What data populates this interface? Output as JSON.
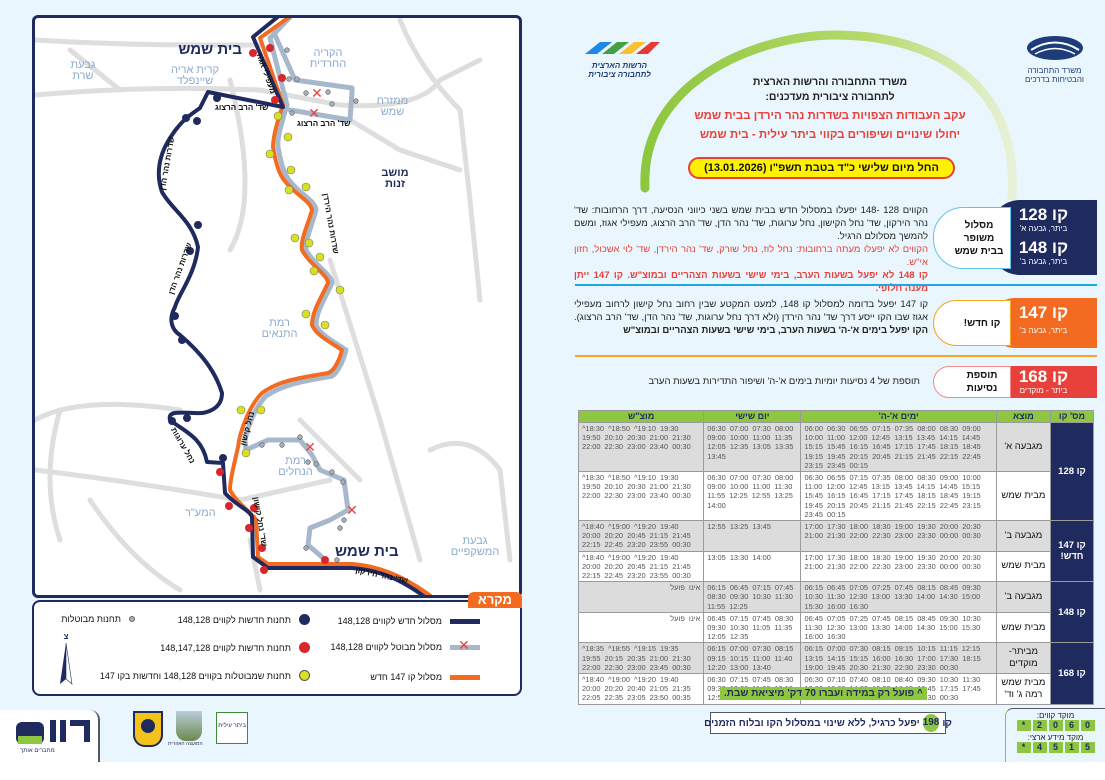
{
  "colors": {
    "navy": "#1f2a5e",
    "orange": "#f26b21",
    "red": "#e8403a",
    "green": "#8dc63f",
    "grey_route": "#a8b8cc",
    "yellow_stop": "#d9e021",
    "light_bg": "#eaf6fd"
  },
  "logos": {
    "ministry": "משרד התחבורה והבטיחות בדרכים",
    "authority": "הרשות הארצית לתחבורה ציבורית",
    "operator": "קווים",
    "operator_tagline": "מחברים אותך",
    "council": "המועצה האזורית",
    "city": "ביתר עילית"
  },
  "header": {
    "line1": "משרד התחבורה והרשות הארצית",
    "line2": "לתחבורה ציבורית מעדכנים:",
    "red1": "עקב העבודות הצפויות בשדרות נהר הירדן בבית שמש",
    "red2": "יחולו שינויים ושיפורים בקווי ביתר עילית - בית שמש",
    "date_pill": "החל מיום שלישי כ\"ד בטבת תשפ\"ו (13.01.2026)"
  },
  "routes": [
    {
      "lines": [
        {
          "label": "קו 128",
          "sub": "ביתר, גבעה א'"
        },
        {
          "label": "קו 148",
          "sub": "ביתר, גבעה ב'"
        }
      ],
      "tag": "מסלול משופר בבית שמש",
      "text": "הקווים 128 -148 יפעלו במסלול חדש בבית שמש בשני כיווני הנסיעה, דרך הרחובות: שד' נהר הירקון, שד' נחל הקישון, נחל ערוגות, שד' נהר הדן, שד' הרב הרצוג, מעפילי אגוז, ומשם להמשך מסלולם הרגיל.",
      "red": "הקווים לא יפעלו מעתה ברחובות: נחל לוז, נחל שורק, שד' נהר הירדן, שד' לוי אשכול, חזון אי\"ש.",
      "red_bold": "קו 148 לא יפעל בשעות הערב, בימי שישי בשעות הצהריים ובמוצ\"ש. קו 147 ייתן מענה חלופי."
    },
    {
      "lines": [
        {
          "label": "קו 147",
          "sub": "ביתר, גבעה ב'"
        }
      ],
      "tag": "קו חדש!",
      "text": "קו 147 יפעל בדומה למסלול קו 148, למעט המקטע שבין רחוב נחל קישון לרחוב מעפילי אגוז שבו הקו ייסע דרך שד' נהר הירדן (ולא דרך נחל ערוגות, שד' נהר הדן, שד' הרב הרצוג).",
      "bold": "הקו יפעל בימים א'-ה' בשעות הערב, בימי שישי בשעות הצהריים ובמוצ\"ש"
    },
    {
      "lines": [
        {
          "label": "קו 168",
          "sub": "ביתר - מוקדים"
        }
      ],
      "tag": "תוספת נסיעות",
      "text": "תוספת של 4 נסיעות יומיות בימים א'-ה' ושיפור התדירות בשעות הערב"
    }
  ],
  "table": {
    "headers": [
      "מס' קו",
      "מוצא",
      "ימים א'-ה'",
      "יום שישי",
      "מוצ\"ש"
    ],
    "groups": [
      {
        "line": "קו 128",
        "rows": [
          {
            "origin": "מגבעה א'",
            "weekday": "06:00  06:30  06:55  07:15  07:35  08:00  08:30  09:00\n10:00  11:00  12:00  12:45  13:15  13:45  14:15  14:45\n15:15  15:45  16:15  16:45  17:15  17:45  18:15  18:45\n19:15  19:45  20:15  20:45  21:15  21:45  22:15  22:45\n23:15  23:45  00:15",
            "friday": "06:30  07:00  07:30  08:00\n09:00  10:00  11:00  11:35\n12:05  12:35  13:05  13:35\n13:45",
            "motzash": "^18:30  ^18:50  ^19:10  19:30\n19:50  20:10  20:30  21:00  21:30\n22:00  22:30  23:00  23:40  00:30"
          },
          {
            "origin": "מבית שמש",
            "weekday": "06:30  06:55  07:15  07:35  08:00  08:30  09:00  10:00\n11:00  12:00  12:45  13:15  13:45  14:15  14:45  15:15\n15:45  16:15  16:45  17:15  17:45  18:15  18:45  19:15\n19:45  20:15  20:45  21:15  21:45  22:15  22:45  23:15\n23:45  00:15",
            "friday": "06:30  07:00  07:30  08:00\n09:00  10:00  11:00  11:30\n11:55  12:25  12:55  13:25\n14:00",
            "motzash": "^18:30  ^18:50  ^19:10  19:30\n19:50  20:10  20:30  21:00  21:30\n22:00  22:30  23:00  23:40  00:30"
          }
        ]
      },
      {
        "line": "קו 147 חדש!",
        "rows": [
          {
            "origin": "מגבעה ב'",
            "weekday": "17:00  17:30  18:00  18:30  19:00  19:30  20:00  20:30\n21:00  21:30  22:00  22:30  23:00  23:30  00:00  00:30",
            "friday": "12:55  13:25  13:45",
            "motzash": "^18:40  ^19:00  ^19:20  19:40\n20:00  20:20  20:45  21:15  21:45\n22:15  22:45  23:20  23:55  00:30"
          },
          {
            "origin": "מבית שמש",
            "weekday": "17:00  17:30  18:00  18:30  19:00  19:30  20:00  20:30\n21:00  21:30  22:00  22:30  23:00  23:30  00:00  00:30",
            "friday": "13:05  13:30  14:00",
            "motzash": "^18:40  ^19:00  ^19:20  19:40\n20:00  20:20  20:45  21:15  21:45\n22:15  22:45  23:20  23:55  00:30"
          }
        ]
      },
      {
        "line": "קו 148",
        "rows": [
          {
            "origin": "מגבעה ב'",
            "weekday": "06:15  06:45  07:05  07:25  07:45  08:15  08:45  09:30\n10:30  11:30  12:30  13:00  13:30  14:00  14:30  15:00\n15:30  16:00  16:30",
            "friday": "06:15  06:45  07:15  07:45\n08:30  09:30  10:30  11:30\n11:55  12:25",
            "motzash": "אינו פועל"
          },
          {
            "origin": "מבית שמש",
            "weekday": "06:45  07:05  07:25  07:45  08:15  08:45  09:30  10:30\n11:30  12:30  13:00  13:30  14:00  14:30  15:00  15:30\n16:00  16:30",
            "friday": "06:45  07:15  07:45  08:30\n09:30  10:30  11:05  11:35\n12:05  12:35",
            "motzash": "אינו פועל"
          }
        ]
      },
      {
        "line": "קו 168",
        "rows": [
          {
            "origin": "מביתר- מוקדים",
            "weekday": "06:15  07:00  07:30  08:15  09:15  10:15  11:15  12:15\n13:15  14:15  15:15  16:00  16:30  17:00  17:30  18:15\n19:00  19:45  20:30  21:30  22:30  23:30  00:30",
            "friday": "06:15  07:00  07:30  08:15\n09:15  10:15  11:00  11:40\n12:20  13:00  13:40",
            "motzash": "^18:35  ^18:55  ^19:15  19:35\n19:55  20:15  20:35  21:00  21:30\n22:00  22:30  23:00  23:45  00:30"
          },
          {
            "origin": "מבית שמש רמה ג' וד'",
            "weekday": "06:30  07:10  07:40  08:10  08:40  09:30  10:30  11:30\n12:30  13:30  14:30  15:30  16:15  16:45  17:15  17:45\n18:30  19:30  20:30  21:30  22:30  23:30  00:30",
            "friday": "06:30  07:15  07:45  08:30\n09:30  10:30  11:30  12:10\n12:50  13:30  14:00",
            "motzash": "^18:40  ^19:00  ^19:20  19:40\n20:00  20:20  20:40  21:05  21:35\n22:05  22:35  23:05  23:50  00:35"
          }
        ]
      }
    ]
  },
  "notes": {
    "caret": "^ פועל רק במידה ועברו 70 דק' מיציאת שבת.",
    "line198_pre": "קו",
    "line198_num": "198",
    "line198_text": "יפעל כרגיל, ללא שינוי במסלול הקו ובלוח הזמנים"
  },
  "hotline": {
    "label1": "מוקד קווים:",
    "digits1": [
      "*",
      "2",
      "0",
      "6",
      "0"
    ],
    "label2": "מוקד מידע ארצי:",
    "digits2": [
      "*",
      "4",
      "5",
      "1",
      "5"
    ]
  },
  "legend": {
    "title": "מקרא",
    "items": [
      "מסלול חדש לקווים 148,128",
      "מסלול מבוטל לקווים 148,128",
      "מסלול קו 147 חדש",
      "תחנות חדשות לקווים 148,128",
      "תחנות חדשות לקווים 148,147,128",
      "תחנות שמבוטלות בקווים 148,128 וחדשות בקו 147",
      "תחנות מבוטלות"
    ],
    "north": "צ"
  },
  "map": {
    "labels": {
      "beit_shemesh_n": "בית שמש",
      "kiryat": "קרית אריה שיינפלד",
      "givat_sharet": "גבעת שרת",
      "kirya": "הקריה החרדית",
      "mizrah": "ממזרח שמש",
      "moshav": "מושב זנות",
      "ramat_tanaim": "רמת התנאים",
      "ramat_nahalim": "רמת הנחלים",
      "hamaar": "המע\"ר",
      "beit_shemesh_s": "בית שמש",
      "givat_mashkifim": "גבעת המשקפיים"
    },
    "streets": {
      "maapilei": "מעפילי אגוז",
      "herzog1": "שד' הרב הרצוג",
      "herzog2": "שד' הרב הרצוג",
      "dan1": "שדרות נהר הדן",
      "dan2": "שדרות נהר הדן",
      "yarden": "שדרות נהר הירדן",
      "kishon": "נחל קישון",
      "arugot": "נחל ערוגות",
      "kishon2": "שד' נחל קישון",
      "yarkon": "שד' נהר הירקון"
    }
  }
}
